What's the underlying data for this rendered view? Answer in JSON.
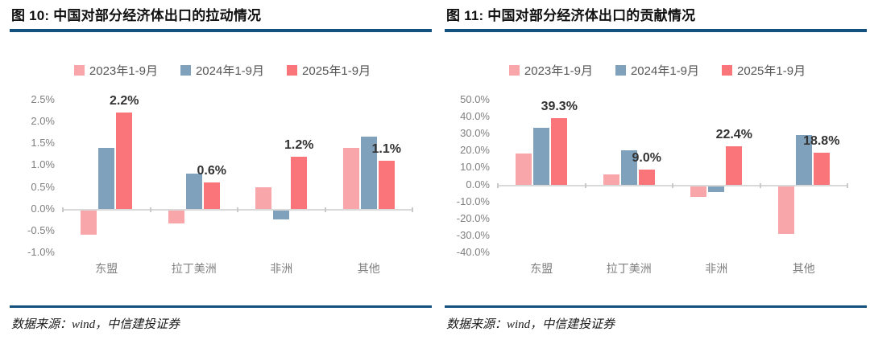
{
  "colors": {
    "rule": "#14517E",
    "axis_text": "#7F7F7F",
    "axis_line": "#D9D9D9",
    "tick_mark": "#C9C9C9",
    "data_label": "#333333",
    "legend_text": "#555555"
  },
  "panels": [
    {
      "title": "图 10: 中国对部分经济体出口的拉动情况",
      "source": "数据来源：wind，中信建投证券"
    },
    {
      "title": "图 11: 中国对部分经济体出口的贡献情况",
      "source": "数据来源：wind，中信建投证券"
    }
  ],
  "chart_data": [
    {
      "type": "bar",
      "title": "图 10: 中国对部分经济体出口的拉动情况",
      "categories": [
        "东盟",
        "拉丁美洲",
        "非洲",
        "其他"
      ],
      "series": [
        {
          "name": "2023年1-9月",
          "color": "#F8A6AA",
          "values": [
            -0.55,
            -0.3,
            0.5,
            1.4
          ]
        },
        {
          "name": "2024年1-9月",
          "color": "#7FA1BC",
          "values": [
            1.4,
            0.8,
            -0.2,
            1.65
          ]
        },
        {
          "name": "2025年1-9月",
          "color": "#FA7579",
          "values": [
            2.2,
            0.6,
            1.2,
            1.1
          ]
        }
      ],
      "value_labels": {
        "series": 2,
        "labels": [
          "2.2%",
          "0.6%",
          "1.2%",
          "1.1%"
        ]
      },
      "ylim": [
        -1.0,
        2.5
      ],
      "ytick_values": [
        2.5,
        2.0,
        1.5,
        1.0,
        0.5,
        0.0,
        -0.5,
        -1.0
      ],
      "ytick_labels": [
        "2.5%",
        "2.0%",
        "1.5%",
        "1.0%",
        "0.5%",
        "0.0%",
        "-0.5%",
        "-1.0%"
      ],
      "xlabel": "",
      "ylabel": "",
      "grid": false,
      "legend_position": "top"
    },
    {
      "type": "bar",
      "title": "图 11: 中国对部分经济体出口的贡献情况",
      "categories": [
        "东盟",
        "拉丁美洲",
        "非洲",
        "其他"
      ],
      "series": [
        {
          "name": "2023年1-9月",
          "color": "#F8A6AA",
          "values": [
            18.3,
            6.0,
            -6.5,
            -28.0
          ]
        },
        {
          "name": "2024年1-9月",
          "color": "#7FA1BC",
          "values": [
            33.2,
            20.0,
            -3.3,
            29.0
          ]
        },
        {
          "name": "2025年1-9月",
          "color": "#FA7579",
          "values": [
            39.3,
            9.0,
            22.4,
            18.8
          ]
        }
      ],
      "value_labels": {
        "series": 2,
        "labels": [
          "39.3%",
          "9.0%",
          "22.4%",
          "18.8%"
        ]
      },
      "ylim": [
        -40.0,
        50.0
      ],
      "ytick_values": [
        50,
        40,
        30,
        20,
        10,
        0,
        -10,
        -20,
        -30,
        -40
      ],
      "ytick_labels": [
        "50.0%",
        "40.0%",
        "30.0%",
        "20.0%",
        "10.0%",
        "0.0%",
        "-10.0%",
        "-20.0%",
        "-30.0%",
        "-40.0%"
      ],
      "xlabel": "",
      "ylabel": "",
      "grid": false,
      "legend_position": "top"
    }
  ]
}
